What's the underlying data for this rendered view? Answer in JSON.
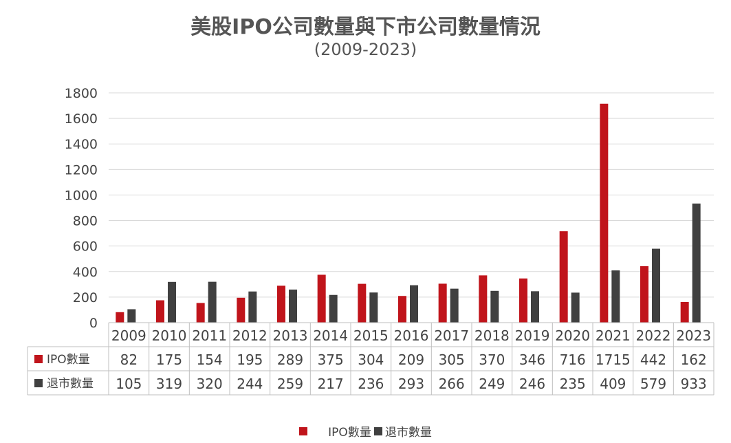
{
  "chart_data": {
    "type": "bar",
    "title": "美股IPO公司數量與下市公司數量情況",
    "subtitle": "(2009-2023)",
    "categories": [
      "2009",
      "2010",
      "2011",
      "2012",
      "2013",
      "2014",
      "2015",
      "2016",
      "2017",
      "2018",
      "2019",
      "2020",
      "2021",
      "2022",
      "2023"
    ],
    "series": [
      {
        "name": "IPO數量",
        "color": "#C0141B",
        "values": [
          82,
          175,
          154,
          195,
          289,
          375,
          304,
          209,
          305,
          370,
          346,
          716,
          1715,
          442,
          162
        ]
      },
      {
        "name": "退市數量",
        "color": "#404040",
        "values": [
          105,
          319,
          320,
          244,
          259,
          217,
          236,
          293,
          266,
          249,
          246,
          235,
          409,
          579,
          933
        ]
      }
    ],
    "ylim": [
      0,
      1800
    ],
    "yticks": [
      0,
      200,
      400,
      600,
      800,
      1000,
      1200,
      1400,
      1600,
      1800
    ],
    "grid": true,
    "legend": "bottom",
    "data_table": true
  }
}
